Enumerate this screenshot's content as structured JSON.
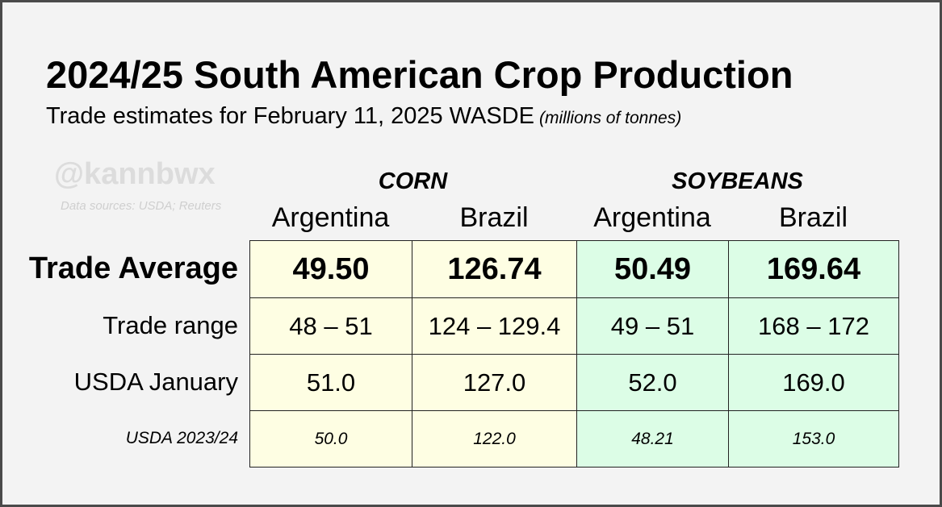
{
  "header": {
    "title": "2024/25 South American Crop Production",
    "subtitle": "Trade estimates for February 11, 2025 WASDE",
    "unit_note": "(millions of tonnes)"
  },
  "watermark": {
    "handle": "@kannbwx",
    "sources": "Data sources: USDA; Reuters"
  },
  "table": {
    "groups": [
      "CORN",
      "SOYBEANS"
    ],
    "columns": [
      "Argentina",
      "Brazil",
      "Argentina",
      "Brazil"
    ],
    "rows": [
      {
        "label": "Trade Average",
        "cells": [
          "49.50",
          "126.74",
          "50.49",
          "169.64"
        ]
      },
      {
        "label": "Trade range",
        "cells": [
          "48 – 51",
          "124 – 129.4",
          "49 – 51",
          "168 – 172"
        ]
      },
      {
        "label": "USDA January",
        "cells": [
          "51.0",
          "127.0",
          "52.0",
          "169.0"
        ]
      },
      {
        "label": "USDA 2023/24",
        "cells": [
          "50.0",
          "122.0",
          "48.21",
          "153.0"
        ]
      }
    ]
  }
}
